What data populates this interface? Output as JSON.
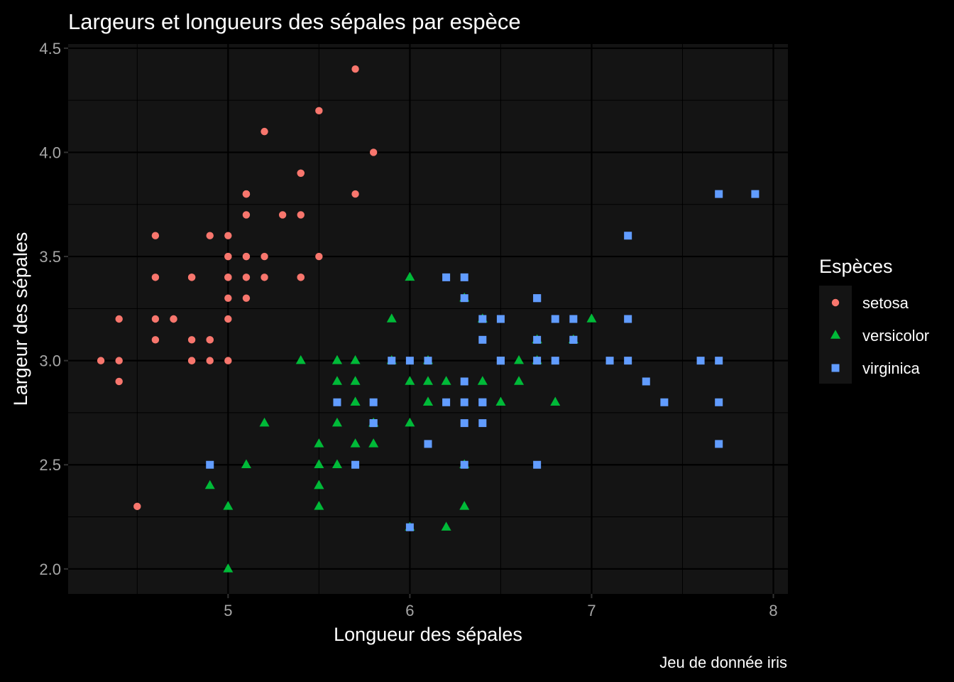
{
  "chart_data": {
    "type": "scatter",
    "title": "Largeurs et longueurs des sépales par espèce",
    "xlabel": "Longueur des sépales",
    "ylabel": "Largeur des sépales",
    "caption": "Jeu de donnée iris",
    "xlim": [
      4.12,
      8.08
    ],
    "ylim": [
      1.88,
      4.52
    ],
    "x_ticks": [
      5,
      6,
      7,
      8
    ],
    "y_ticks": [
      2.0,
      2.5,
      3.0,
      3.5,
      4.0,
      4.5
    ],
    "x_tick_labels": [
      "5",
      "6",
      "7",
      "8"
    ],
    "y_tick_labels": [
      "2.0",
      "2.5",
      "3.0",
      "3.5",
      "4.0",
      "4.5"
    ],
    "grid": true,
    "legend": {
      "title": "Espèces",
      "position": "right"
    },
    "colors": {
      "background": "#000000",
      "panel": "#141414",
      "grid": "#000000",
      "tick_text": "#a6a6a6"
    },
    "series": [
      {
        "name": "setosa",
        "color": "#f8766d",
        "marker": "circle",
        "points": [
          [
            5.1,
            3.5
          ],
          [
            4.9,
            3.0
          ],
          [
            4.7,
            3.2
          ],
          [
            4.6,
            3.1
          ],
          [
            5.0,
            3.6
          ],
          [
            5.4,
            3.9
          ],
          [
            4.6,
            3.4
          ],
          [
            5.0,
            3.4
          ],
          [
            4.4,
            2.9
          ],
          [
            4.9,
            3.1
          ],
          [
            5.4,
            3.7
          ],
          [
            4.8,
            3.4
          ],
          [
            4.8,
            3.0
          ],
          [
            4.3,
            3.0
          ],
          [
            5.8,
            4.0
          ],
          [
            5.7,
            4.4
          ],
          [
            5.4,
            3.9
          ],
          [
            5.1,
            3.5
          ],
          [
            5.7,
            3.8
          ],
          [
            5.1,
            3.8
          ],
          [
            5.4,
            3.4
          ],
          [
            5.1,
            3.7
          ],
          [
            4.6,
            3.6
          ],
          [
            5.1,
            3.3
          ],
          [
            4.8,
            3.4
          ],
          [
            5.0,
            3.0
          ],
          [
            5.0,
            3.4
          ],
          [
            5.2,
            3.5
          ],
          [
            5.2,
            3.4
          ],
          [
            4.7,
            3.2
          ],
          [
            4.8,
            3.1
          ],
          [
            5.4,
            3.4
          ],
          [
            5.2,
            4.1
          ],
          [
            5.5,
            4.2
          ],
          [
            4.9,
            3.1
          ],
          [
            5.0,
            3.2
          ],
          [
            5.5,
            3.5
          ],
          [
            4.9,
            3.6
          ],
          [
            4.4,
            3.0
          ],
          [
            5.1,
            3.4
          ],
          [
            5.0,
            3.5
          ],
          [
            4.5,
            2.3
          ],
          [
            4.4,
            3.2
          ],
          [
            5.0,
            3.5
          ],
          [
            5.1,
            3.8
          ],
          [
            4.8,
            3.0
          ],
          [
            5.1,
            3.8
          ],
          [
            4.6,
            3.2
          ],
          [
            5.3,
            3.7
          ],
          [
            5.0,
            3.3
          ]
        ]
      },
      {
        "name": "versicolor",
        "color": "#00ba38",
        "marker": "triangle",
        "points": [
          [
            7.0,
            3.2
          ],
          [
            6.4,
            3.2
          ],
          [
            6.9,
            3.1
          ],
          [
            5.5,
            2.3
          ],
          [
            6.5,
            2.8
          ],
          [
            5.7,
            2.8
          ],
          [
            6.3,
            3.3
          ],
          [
            4.9,
            2.4
          ],
          [
            6.6,
            2.9
          ],
          [
            5.2,
            2.7
          ],
          [
            5.0,
            2.0
          ],
          [
            5.9,
            3.0
          ],
          [
            6.0,
            2.2
          ],
          [
            6.1,
            2.9
          ],
          [
            5.6,
            2.9
          ],
          [
            6.7,
            3.1
          ],
          [
            5.6,
            3.0
          ],
          [
            5.8,
            2.7
          ],
          [
            6.2,
            2.2
          ],
          [
            5.6,
            2.5
          ],
          [
            5.9,
            3.2
          ],
          [
            6.1,
            2.8
          ],
          [
            6.3,
            2.5
          ],
          [
            6.1,
            2.8
          ],
          [
            6.4,
            2.9
          ],
          [
            6.6,
            3.0
          ],
          [
            6.8,
            2.8
          ],
          [
            6.7,
            3.0
          ],
          [
            6.0,
            2.9
          ],
          [
            5.7,
            2.6
          ],
          [
            5.5,
            2.4
          ],
          [
            5.5,
            2.4
          ],
          [
            5.8,
            2.7
          ],
          [
            6.0,
            2.7
          ],
          [
            5.4,
            3.0
          ],
          [
            6.0,
            3.4
          ],
          [
            6.7,
            3.1
          ],
          [
            6.3,
            2.3
          ],
          [
            5.6,
            3.0
          ],
          [
            5.5,
            2.5
          ],
          [
            5.5,
            2.6
          ],
          [
            6.1,
            3.0
          ],
          [
            5.8,
            2.6
          ],
          [
            5.0,
            2.3
          ],
          [
            5.6,
            2.7
          ],
          [
            5.7,
            3.0
          ],
          [
            5.7,
            2.9
          ],
          [
            6.2,
            2.9
          ],
          [
            5.1,
            2.5
          ],
          [
            5.7,
            2.8
          ]
        ]
      },
      {
        "name": "virginica",
        "color": "#619cff",
        "marker": "square",
        "points": [
          [
            6.3,
            3.3
          ],
          [
            5.8,
            2.7
          ],
          [
            7.1,
            3.0
          ],
          [
            6.3,
            2.9
          ],
          [
            6.5,
            3.0
          ],
          [
            7.6,
            3.0
          ],
          [
            4.9,
            2.5
          ],
          [
            7.3,
            2.9
          ],
          [
            6.7,
            2.5
          ],
          [
            7.2,
            3.6
          ],
          [
            6.5,
            3.2
          ],
          [
            6.4,
            2.7
          ],
          [
            6.8,
            3.0
          ],
          [
            5.7,
            2.5
          ],
          [
            5.8,
            2.8
          ],
          [
            6.4,
            3.2
          ],
          [
            6.5,
            3.0
          ],
          [
            7.7,
            3.8
          ],
          [
            7.7,
            2.6
          ],
          [
            6.0,
            2.2
          ],
          [
            6.9,
            3.2
          ],
          [
            5.6,
            2.8
          ],
          [
            7.7,
            2.8
          ],
          [
            6.3,
            2.7
          ],
          [
            6.7,
            3.3
          ],
          [
            7.2,
            3.2
          ],
          [
            6.2,
            2.8
          ],
          [
            6.1,
            3.0
          ],
          [
            6.4,
            2.8
          ],
          [
            7.2,
            3.0
          ],
          [
            7.4,
            2.8
          ],
          [
            7.9,
            3.8
          ],
          [
            6.4,
            2.8
          ],
          [
            6.3,
            2.8
          ],
          [
            6.1,
            2.6
          ],
          [
            7.7,
            3.0
          ],
          [
            6.3,
            3.4
          ],
          [
            6.4,
            3.1
          ],
          [
            6.0,
            3.0
          ],
          [
            6.9,
            3.1
          ],
          [
            6.7,
            3.1
          ],
          [
            6.9,
            3.1
          ],
          [
            5.8,
            2.7
          ],
          [
            6.8,
            3.2
          ],
          [
            6.7,
            3.3
          ],
          [
            6.7,
            3.0
          ],
          [
            6.3,
            2.5
          ],
          [
            6.5,
            3.0
          ],
          [
            6.2,
            3.4
          ],
          [
            5.9,
            3.0
          ]
        ]
      }
    ]
  }
}
